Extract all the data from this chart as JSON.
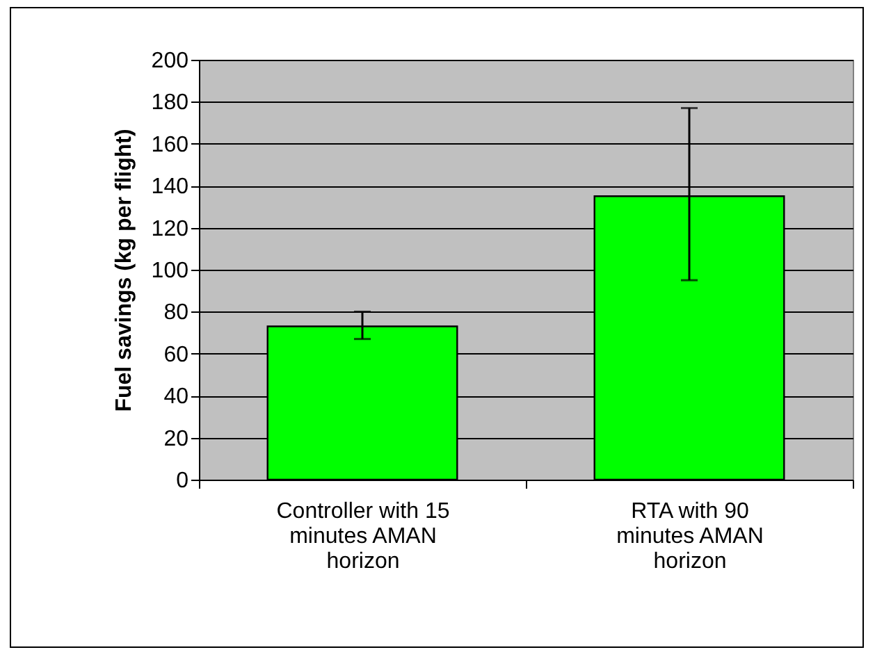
{
  "chart_data": {
    "type": "bar",
    "ylabel": "Fuel savings (kg per flight)",
    "categories": [
      "Controller with 15 minutes AMAN horizon",
      "RTA with 90 minutes AMAN horizon"
    ],
    "values": [
      73,
      135
    ],
    "color": "#00ff00",
    "errors": [
      [
        67,
        80
      ],
      [
        95,
        177
      ]
    ],
    "ylim": [
      0,
      200
    ],
    "yticks": [
      0,
      20,
      40,
      60,
      80,
      100,
      120,
      140,
      160,
      180,
      200
    ],
    "grid": "y"
  }
}
